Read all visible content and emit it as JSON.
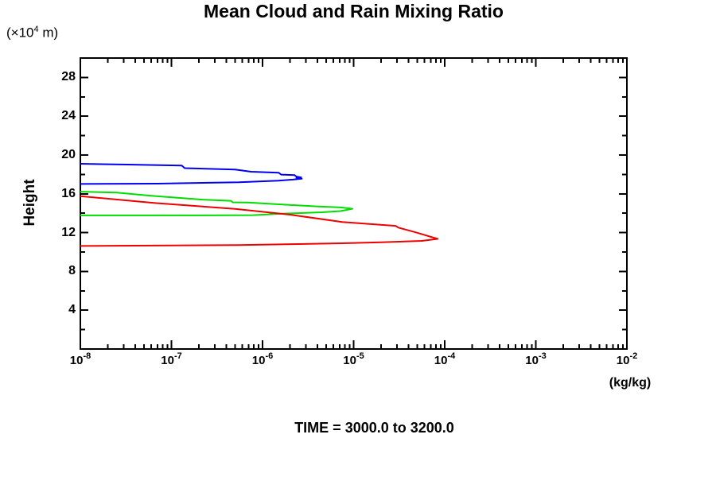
{
  "chart_data": {
    "type": "line",
    "title": "Mean Cloud and Rain Mixing Ratio",
    "ylabel": "Height",
    "y_unit": {
      "prefix": "(×10",
      "exp": "4",
      "suffix": " m)"
    },
    "x_unit": "(kg/kg)",
    "caption": "TIME = 3000.0 to 3200.0",
    "x_axis": {
      "scale": "log",
      "min": 1e-08,
      "max": 0.01,
      "tick_base": "10",
      "tick_exponents": [
        -8,
        -7,
        -6,
        -5,
        -4,
        -3,
        -2
      ],
      "minor_tick_mantissas": [
        2,
        3,
        4,
        5,
        6,
        7,
        8,
        9
      ]
    },
    "y_axis": {
      "min": 0,
      "max": 30,
      "major_step": 4,
      "minor_step": 2,
      "tick_labels": [
        4,
        8,
        12,
        16,
        20,
        24,
        28
      ]
    },
    "grid": false,
    "legend": false,
    "frame_color": "#000000",
    "background": "#ffffff",
    "series": [
      {
        "name": "blue-curve",
        "color": "#0000ee",
        "points": [
          [
            1e-08,
            19.1
          ],
          [
            3.3e-08,
            19.02
          ],
          [
            1.3e-07,
            18.92
          ],
          [
            1.4e-07,
            18.65
          ],
          [
            5e-07,
            18.5
          ],
          [
            7.5e-07,
            18.28
          ],
          [
            1.5e-06,
            18.18
          ],
          [
            1.6e-06,
            17.98
          ],
          [
            2.25e-06,
            17.93
          ],
          [
            2.35e-06,
            17.78
          ],
          [
            2.65e-06,
            17.7
          ],
          [
            2.35e-06,
            17.62
          ],
          [
            2.7e-06,
            17.56
          ],
          [
            2.15e-06,
            17.47
          ],
          [
            1.5e-06,
            17.36
          ],
          [
            5.5e-07,
            17.2
          ],
          [
            7e-08,
            17.05
          ],
          [
            1e-08,
            17.02
          ]
        ]
      },
      {
        "name": "green-curve",
        "color": "#00dd00",
        "points": [
          [
            1e-08,
            16.22
          ],
          [
            2.5e-08,
            16.12
          ],
          [
            6e-08,
            15.8
          ],
          [
            2.2e-07,
            15.4
          ],
          [
            4.5e-07,
            15.28
          ],
          [
            4.7e-07,
            15.12
          ],
          [
            7e-07,
            15.1
          ],
          [
            1.65e-06,
            14.9
          ],
          [
            4.1e-06,
            14.7
          ],
          [
            7.2e-06,
            14.6
          ],
          [
            9.7e-06,
            14.46
          ],
          [
            7.2e-06,
            14.22
          ],
          [
            4.5e-06,
            14.1
          ],
          [
            1.65e-06,
            13.95
          ],
          [
            7.9e-07,
            13.8
          ],
          [
            2.2e-07,
            13.78
          ],
          [
            1e-08,
            13.78
          ]
        ]
      },
      {
        "name": "red-curve",
        "color": "#ee0000",
        "points": [
          [
            1e-08,
            15.76
          ],
          [
            6.6e-08,
            15.05
          ],
          [
            5e-07,
            14.45
          ],
          [
            2e-06,
            13.85
          ],
          [
            7.5e-06,
            13.1
          ],
          [
            2.9e-05,
            12.7
          ],
          [
            3.1e-05,
            12.52
          ],
          [
            5e-05,
            11.98
          ],
          [
            8.4e-05,
            11.35
          ],
          [
            5.6e-05,
            11.15
          ],
          [
            2e-05,
            11.0
          ],
          [
            7.5e-06,
            10.9
          ],
          [
            5.5e-07,
            10.72
          ],
          [
            1e-08,
            10.62
          ]
        ]
      }
    ]
  }
}
